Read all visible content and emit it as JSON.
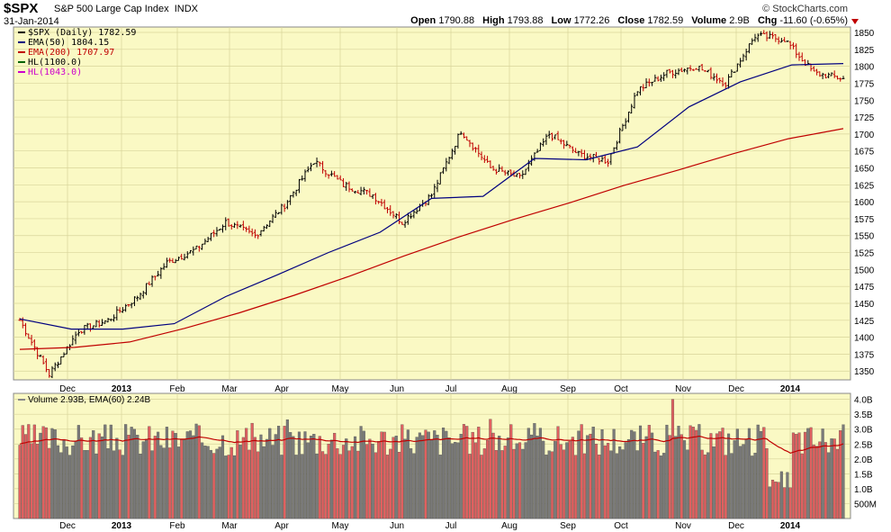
{
  "header": {
    "symbol": "$SPX",
    "name": "S&P 500 Large Cap Index",
    "exchange": "INDX",
    "date": "31-Jan-2014",
    "brand": "© StockCharts.com",
    "open_label": "Open",
    "open": "1790.88",
    "high_label": "High",
    "high": "1793.88",
    "low_label": "Low",
    "low": "1772.26",
    "close_label": "Close",
    "close": "1782.59",
    "volume_label": "Volume",
    "volume": "2.9B",
    "chg_label": "Chg",
    "chg": "-11.60 (-0.65%)",
    "down_color": "#c00000"
  },
  "legend": {
    "price": [
      {
        "text": "$SPX (Daily) 1782.59",
        "color": "#000000"
      },
      {
        "text": "EMA(50) 1804.15",
        "color": "#00007f"
      },
      {
        "text": "EMA(200) 1707.97",
        "color": "#c00000"
      },
      {
        "text": "HL(1100.0)",
        "color": "#006400"
      },
      {
        "text": "HL(1043.0)",
        "color": "#cc00cc"
      }
    ],
    "volume": "Volume 2.93B, EMA(60) 2.24B"
  },
  "chart_data": [
    {
      "type": "line",
      "title": "$SPX S&P 500 Large Cap Index",
      "x_ticks": [
        "Dec",
        "2013",
        "Feb",
        "Mar",
        "Apr",
        "May",
        "Jun",
        "Jul",
        "Aug",
        "Sep",
        "Oct",
        "Nov",
        "Dec",
        "2014"
      ],
      "y_ticks": [
        1350,
        1375,
        1400,
        1425,
        1450,
        1475,
        1500,
        1525,
        1550,
        1575,
        1600,
        1625,
        1650,
        1675,
        1700,
        1725,
        1750,
        1775,
        1800,
        1825,
        1850
      ],
      "ylim": [
        1337,
        1858
      ],
      "grid": true,
      "background": "#faf9c4",
      "series": [
        {
          "name": "$SPX (Daily)",
          "color": "#000000",
          "x": [
            "Nov",
            "Nov",
            "Dec",
            "2013",
            "Jan",
            "Feb",
            "Mar",
            "Apr",
            "Apr",
            "May",
            "May",
            "Jun",
            "Jun",
            "Jul",
            "Aug",
            "Aug",
            "Sep",
            "Sep",
            "Oct",
            "Oct",
            "Oct",
            "Nov",
            "Nov",
            "Dec",
            "Dec",
            "2014",
            "Jan",
            "Jan",
            "Jan"
          ],
          "values": [
            1425,
            1345,
            1410,
            1425,
            1460,
            1510,
            1530,
            1570,
            1550,
            1595,
            1660,
            1625,
            1610,
            1570,
            1610,
            1705,
            1650,
            1635,
            1700,
            1670,
            1660,
            1765,
            1790,
            1800,
            1775,
            1845,
            1840,
            1790,
            1782
          ]
        },
        {
          "name": "EMA(50)",
          "color": "#00007f",
          "x": [
            "Nov",
            "Nov",
            "Dec",
            "2013",
            "Feb",
            "Mar",
            "Apr",
            "May",
            "Jun",
            "Jul",
            "Aug",
            "Sep",
            "Oct",
            "Nov",
            "Dec",
            "2014",
            "Jan"
          ],
          "values": [
            1427,
            1412,
            1412,
            1420,
            1460,
            1492,
            1525,
            1555,
            1605,
            1608,
            1664,
            1662,
            1681,
            1740,
            1777,
            1802,
            1804
          ]
        },
        {
          "name": "EMA(200)",
          "color": "#c00000",
          "x": [
            "Nov",
            "Dec",
            "2013",
            "Feb",
            "Mar",
            "Apr",
            "May",
            "Jun",
            "Jul",
            "Aug",
            "Sep",
            "Oct",
            "Nov",
            "Dec",
            "2014",
            "Jan"
          ],
          "values": [
            1382,
            1385,
            1393,
            1413,
            1436,
            1462,
            1490,
            1520,
            1548,
            1574,
            1598,
            1624,
            1647,
            1671,
            1693,
            1708
          ]
        }
      ]
    },
    {
      "type": "bar",
      "title": "Volume",
      "x_ticks": [
        "Dec",
        "2013",
        "Feb",
        "Mar",
        "Apr",
        "May",
        "Jun",
        "Jul",
        "Aug",
        "Sep",
        "Oct",
        "Nov",
        "Dec",
        "2014"
      ],
      "y_ticks": [
        "500M",
        "1.0B",
        "1.5B",
        "2.0B",
        "2.5B",
        "3.0B",
        "3.5B",
        "4.0B"
      ],
      "ylim": [
        0,
        4.2
      ],
      "unit": "billions",
      "up_color": "#7a7a7a",
      "down_color": "#e06060",
      "ema_name": "EMA(60)",
      "ema_color": "#c00000"
    }
  ]
}
